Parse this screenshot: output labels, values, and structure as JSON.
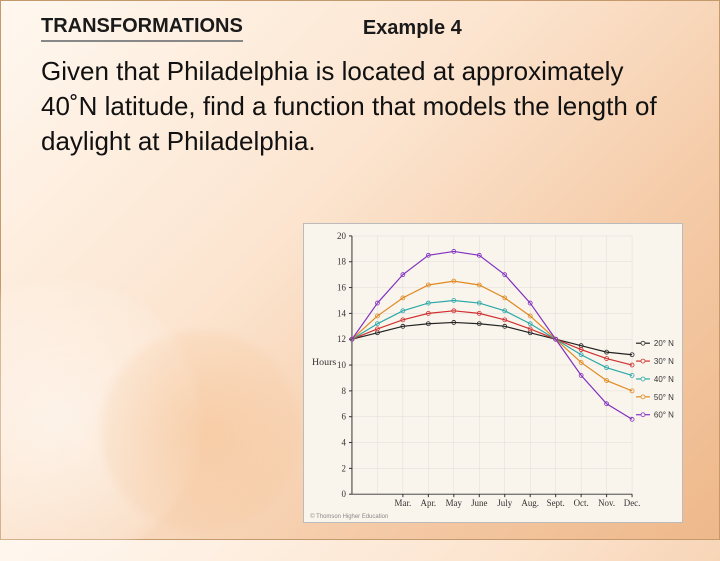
{
  "header": {
    "section_title": "TRANSFORMATIONS",
    "example_label": "Example 4"
  },
  "body": {
    "text": "Given that Philadelphia is located at approximately 40˚N latitude, find a function that models the length of daylight at Philadelphia."
  },
  "chart": {
    "type": "line",
    "x_label_months": [
      "Mar.",
      "Apr.",
      "May",
      "June",
      "July",
      "Aug.",
      "Sept.",
      "Oct.",
      "Nov.",
      "Dec."
    ],
    "y_label": "Hours",
    "y_ticks": [
      0,
      2,
      4,
      6,
      8,
      10,
      12,
      14,
      16,
      18,
      20
    ],
    "ylim": [
      0,
      20
    ],
    "background_color": "#faf5ec",
    "grid_color": "#ddd",
    "axis_color": "#333",
    "title_fontsize": 10,
    "tick_fontsize": 9,
    "series": [
      {
        "label": "20° N",
        "color": "#222222",
        "values": [
          12.0,
          12.5,
          13.0,
          13.2,
          13.3,
          13.2,
          13.0,
          12.5,
          12.0,
          11.5,
          11.0,
          10.8
        ]
      },
      {
        "label": "30° N",
        "color": "#d03030",
        "values": [
          12.0,
          12.8,
          13.5,
          14.0,
          14.2,
          14.0,
          13.5,
          12.8,
          12.0,
          11.2,
          10.5,
          10.0
        ]
      },
      {
        "label": "40° N",
        "color": "#2aa8a8",
        "values": [
          12.0,
          13.2,
          14.2,
          14.8,
          15.0,
          14.8,
          14.2,
          13.2,
          12.0,
          10.8,
          9.8,
          9.2
        ]
      },
      {
        "label": "50° N",
        "color": "#e08820",
        "values": [
          12.0,
          13.8,
          15.2,
          16.2,
          16.5,
          16.2,
          15.2,
          13.8,
          12.0,
          10.2,
          8.8,
          8.0
        ]
      },
      {
        "label": "60° N",
        "color": "#8030c0",
        "values": [
          12.0,
          14.8,
          17.0,
          18.5,
          18.8,
          18.5,
          17.0,
          14.8,
          12.0,
          9.2,
          7.0,
          5.8
        ]
      }
    ],
    "copyright": "© Thomson Higher Education"
  }
}
